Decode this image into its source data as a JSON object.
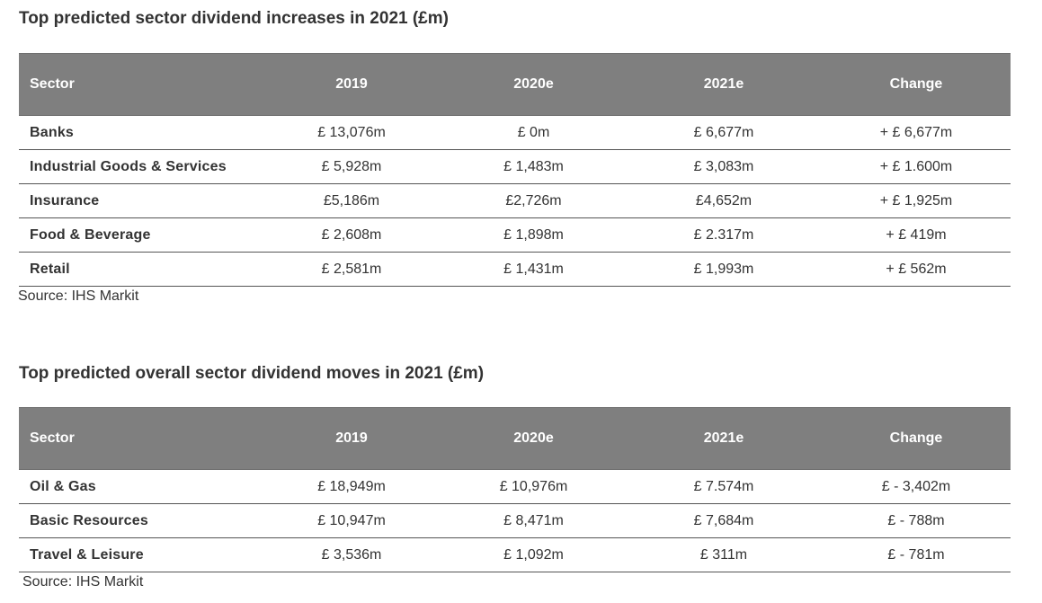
{
  "table1": {
    "title": "Top predicted sector dividend increases in 2021 (£m)",
    "headers": [
      "Sector",
      "2019",
      "2020e",
      "2021e",
      "Change"
    ],
    "rows": [
      [
        "Banks",
        "£ 13,076m",
        "£ 0m",
        "£ 6,677m",
        "+ £ 6,677m"
      ],
      [
        "Industrial Goods & Services",
        "£ 5,928m",
        "£ 1,483m",
        "£ 3,083m",
        "+ £ 1.600m"
      ],
      [
        "Insurance",
        "£5,186m",
        "£2,726m",
        "£4,652m",
        "+ £ 1,925m"
      ],
      [
        "Food & Beverage",
        "£ 2,608m",
        "£ 1,898m",
        "£ 2.317m",
        "+ £ 419m"
      ],
      [
        "Retail",
        "£ 2,581m",
        "£ 1,431m",
        "£ 1,993m",
        "+ £ 562m"
      ]
    ],
    "source": "Source: IHS Markit"
  },
  "table2": {
    "title": "Top predicted overall sector dividend moves in 2021 (£m)",
    "headers": [
      "Sector",
      "2019",
      "2020e",
      "2021e",
      "Change"
    ],
    "rows": [
      [
        "Oil & Gas",
        "£ 18,949m",
        "£ 10,976m",
        "£ 7.574m",
        "£ - 3,402m"
      ],
      [
        "Basic Resources",
        "£ 10,947m",
        "£ 8,471m",
        "£ 7,684m",
        "£ - 788m"
      ],
      [
        "Travel & Leisure",
        "£ 3,536m",
        "£ 1,092m",
        "£ 311m",
        "£ - 781m"
      ]
    ],
    "source": "Source: IHS Markit"
  },
  "colors": {
    "header_bg": "#7f7f7f",
    "header_text": "#ffffff",
    "body_text": "#333333",
    "row_border": "#555555"
  }
}
